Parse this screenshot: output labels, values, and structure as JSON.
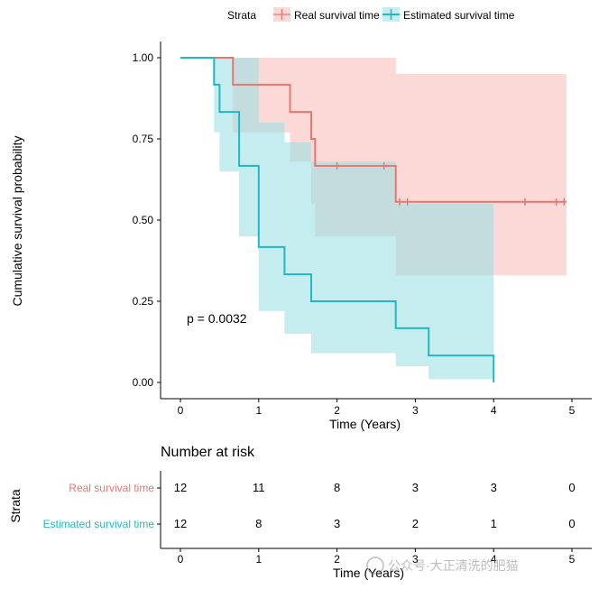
{
  "legend": {
    "title": "Strata",
    "entries": [
      "Real survival time",
      "Estimated survival time"
    ]
  },
  "colors": {
    "real": "#E8766E",
    "estimated": "#1FB8C2",
    "real_band": "#F8B9B4",
    "estimated_band": "#9EDFE3"
  },
  "chart_data": [
    {
      "type": "line",
      "subtype": "kaplan-meier",
      "title": "",
      "xlabel": "Time (Years)",
      "ylabel": "Cumulative survival probability",
      "xlim": [
        0,
        5
      ],
      "ylim": [
        0,
        1
      ],
      "xticks": [
        "0",
        "1",
        "2",
        "3",
        "4",
        "5"
      ],
      "yticks": [
        "0.00",
        "0.25",
        "0.50",
        "0.75",
        "1.00"
      ],
      "annotation": "p = 0.0032",
      "grid": false,
      "legend_position": "top",
      "series": [
        {
          "name": "Real survival time",
          "steps": [
            [
              0,
              1.0
            ],
            [
              0.67,
              0.917
            ],
            [
              1.4,
              0.833
            ],
            [
              1.67,
              0.75
            ],
            [
              1.72,
              0.667
            ],
            [
              2.75,
              0.556
            ],
            [
              4.93,
              0.556
            ]
          ],
          "ci_steps": [
            [
              0,
              1.0,
              1.0
            ],
            [
              0.67,
              0.77,
              1.0
            ],
            [
              1.4,
              0.68,
              1.0
            ],
            [
              1.67,
              0.55,
              1.0
            ],
            [
              1.72,
              0.45,
              1.0
            ],
            [
              2.75,
              0.33,
              0.95
            ],
            [
              4.93,
              0.33,
              0.95
            ]
          ],
          "censored": [
            2.0,
            2.6,
            2.8,
            2.9,
            4.4,
            4.8,
            4.9
          ]
        },
        {
          "name": "Estimated survival time",
          "steps": [
            [
              0,
              1.0
            ],
            [
              0.43,
              0.917
            ],
            [
              0.5,
              0.833
            ],
            [
              0.75,
              0.667
            ],
            [
              1.0,
              0.417
            ],
            [
              1.33,
              0.333
            ],
            [
              1.67,
              0.25
            ],
            [
              2.75,
              0.167
            ],
            [
              3.17,
              0.083
            ],
            [
              4.0,
              0.0
            ]
          ],
          "ci_steps": [
            [
              0,
              1.0,
              1.0
            ],
            [
              0.43,
              0.77,
              1.0
            ],
            [
              0.5,
              0.65,
              1.0
            ],
            [
              0.75,
              0.45,
              1.0
            ],
            [
              1.0,
              0.22,
              0.8
            ],
            [
              1.33,
              0.15,
              0.74
            ],
            [
              1.67,
              0.09,
              0.68
            ],
            [
              2.75,
              0.05,
              0.55
            ],
            [
              3.17,
              0.01,
              0.55
            ],
            [
              4.0,
              0.01,
              0.55
            ]
          ],
          "censored": []
        }
      ]
    },
    {
      "type": "table",
      "title": "Number at risk",
      "ylabel": "Strata",
      "xlabel": "Time (Years)",
      "xticks": [
        "0",
        "1",
        "2",
        "3",
        "4",
        "5"
      ],
      "rows": [
        {
          "name": "Real survival time",
          "values": [
            "12",
            "11",
            "8",
            "3",
            "3",
            "0"
          ]
        },
        {
          "name": "Estimated survival time",
          "values": [
            "12",
            "8",
            "3",
            "2",
            "1",
            "0"
          ]
        }
      ]
    }
  ],
  "watermark": "公众号·大正清洗的肥猫"
}
